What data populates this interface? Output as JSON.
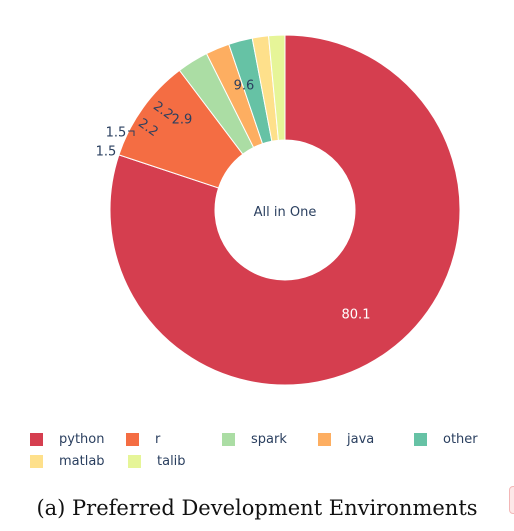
{
  "chart_data": {
    "type": "pie",
    "hole": true,
    "center_text": "All in One",
    "categories": [
      "python",
      "r",
      "spark",
      "java",
      "other",
      "matlab",
      "talib"
    ],
    "values": [
      80.1,
      9.6,
      2.9,
      2.2,
      2.2,
      1.5,
      1.5
    ],
    "value_labels": [
      "80.1",
      "9.6",
      "2.9",
      "2.2",
      "2.2",
      "1.5",
      "1.5"
    ],
    "colors": [
      "#d53e4f",
      "#f46d43",
      "#abdda4",
      "#fdae61",
      "#66c2a5",
      "#fee08b",
      "#e6f598"
    ],
    "legend_position": "bottom",
    "title": ""
  },
  "caption": "(a) Preferred Development Environments"
}
